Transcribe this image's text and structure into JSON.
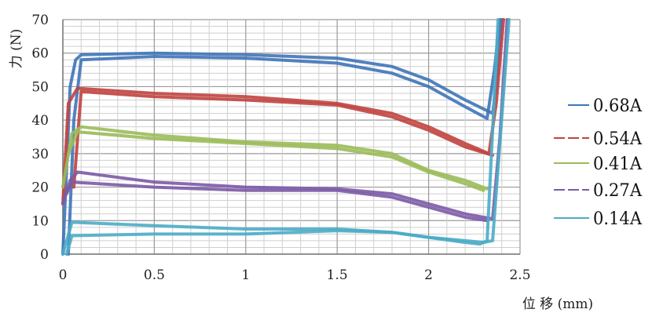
{
  "chart_data": {
    "type": "line",
    "xlabel": "位 移 (mm)",
    "ylabel": "力 (N)",
    "xlim": [
      0,
      2.5
    ],
    "ylim": [
      0,
      70
    ],
    "xticks": [
      "0",
      "0.5",
      "1",
      "1.5",
      "2",
      "2.5"
    ],
    "yticks": [
      "0",
      "10",
      "20",
      "30",
      "40",
      "50",
      "60",
      "70"
    ],
    "grid": true,
    "legend_position": "right",
    "series": [
      {
        "name": "0.68A",
        "color": "#3f74b8",
        "traces": [
          {
            "x": [
              0,
              0.04,
              0.07,
              0.1,
              0.5,
              1,
              1.5,
              1.8,
              2,
              2.2,
              2.35,
              2.37,
              2.4
            ],
            "y": [
              0,
              50,
              58,
              59.5,
              60,
              59.5,
              58.5,
              56,
              52,
              46,
              42,
              50,
              70
            ]
          },
          {
            "x": [
              0.03,
              0.06,
              0.1,
              0.5,
              1,
              1.5,
              1.8,
              2,
              2.2,
              2.32,
              2.36,
              2.39
            ],
            "y": [
              0,
              40,
              58,
              59,
              58.5,
              57,
              54,
              50,
              44,
              40.5,
              55,
              70
            ]
          }
        ]
      },
      {
        "name": "0.54A",
        "color": "#c0433f",
        "traces": [
          {
            "x": [
              0,
              0.03,
              0.08,
              0.5,
              1,
              1.5,
              1.8,
              2,
              2.2,
              2.33,
              2.37,
              2.41
            ],
            "y": [
              15,
              45,
              49.5,
              48,
              47,
              45,
              42,
              38,
              33,
              30,
              45,
              70
            ]
          },
          {
            "x": [
              0.06,
              0.1,
              0.5,
              1,
              1.5,
              1.8,
              2,
              2.2,
              2.35
            ],
            "y": [
              20,
              48.5,
              47,
              46,
              44.5,
              41,
              37,
              32,
              29.5
            ]
          }
        ]
      },
      {
        "name": "0.41A",
        "color": "#9bbb59",
        "traces": [
          {
            "x": [
              0,
              0.05,
              0.1,
              0.5,
              1,
              1.5,
              1.8,
              2,
              2.2,
              2.32
            ],
            "y": [
              20,
              36,
              38,
              35.5,
              33.5,
              32.5,
              30,
              25,
              22,
              19.5
            ]
          },
          {
            "x": [
              0.03,
              0.08,
              0.5,
              1,
              1.5,
              1.8,
              2,
              2.2,
              2.3
            ],
            "y": [
              30,
              36.5,
              34.5,
              33,
              31.5,
              29,
              24.5,
              21,
              19
            ]
          }
        ]
      },
      {
        "name": "0.27A",
        "color": "#7b5aa6",
        "traces": [
          {
            "x": [
              0,
              0.04,
              0.08,
              0.5,
              1,
              1.5,
              1.8,
              2,
              2.2,
              2.35,
              2.39,
              2.43
            ],
            "y": [
              15,
              22,
              24.5,
              21.5,
              20,
              19.5,
              18,
              15,
              12,
              10.5,
              35,
              70
            ]
          },
          {
            "x": [
              0.02,
              0.05,
              0.5,
              1,
              1.5,
              1.8,
              2,
              2.2,
              2.32
            ],
            "y": [
              18,
              21.5,
              20,
              19,
              19,
              17,
              14,
              11,
              10
            ]
          }
        ]
      },
      {
        "name": "0.14A",
        "color": "#4bacc6",
        "traces": [
          {
            "x": [
              0,
              0.05,
              0.5,
              1,
              1.5,
              1.8,
              2,
              2.2,
              2.3,
              2.35,
              2.44
            ],
            "y": [
              0,
              9.5,
              8.5,
              7.5,
              7.5,
              6.5,
              5,
              4,
              3.5,
              4,
              70
            ]
          },
          {
            "x": [
              0.02,
              0.05,
              0.5,
              1,
              1.5,
              1.8,
              2,
              2.2,
              2.28,
              2.32,
              2.38
            ],
            "y": [
              0,
              5.5,
              6,
              6,
              7,
              6.5,
              5,
              3.5,
              3,
              4,
              70
            ]
          }
        ]
      }
    ]
  }
}
